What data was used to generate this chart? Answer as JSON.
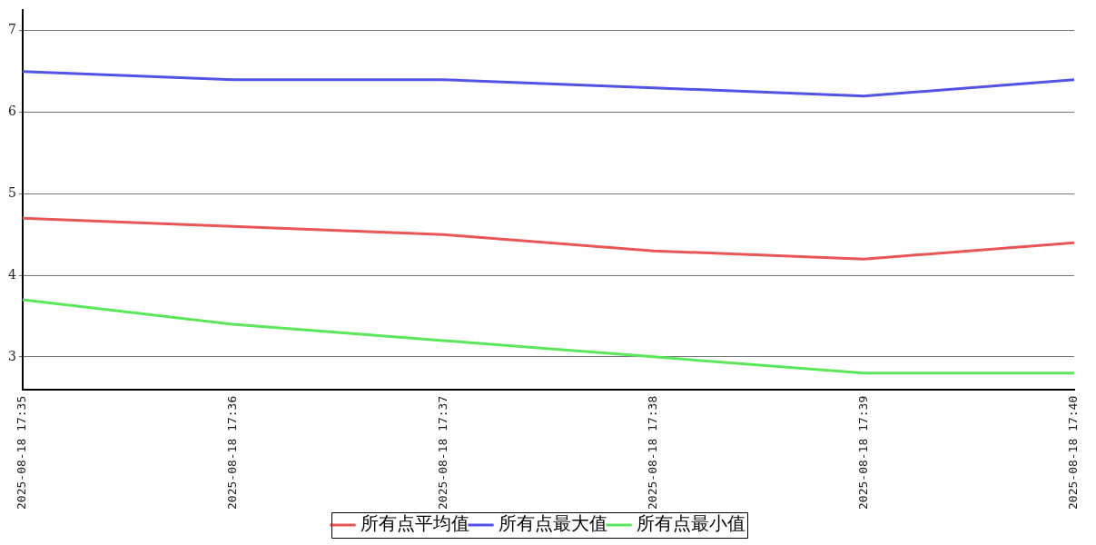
{
  "chart_data": {
    "type": "line",
    "categories": [
      "2025-08-18 17:35",
      "2025-08-18 17:36",
      "2025-08-18 17:37",
      "2025-08-18 17:38",
      "2025-08-18 17:39",
      "2025-08-18 17:40"
    ],
    "series": [
      {
        "name": "所有点平均值",
        "color": "#e85656",
        "values": [
          4.7,
          4.6,
          4.5,
          4.3,
          4.2,
          4.4
        ]
      },
      {
        "name": "所有点最大值",
        "color": "#5353e6",
        "values": [
          6.5,
          6.4,
          6.4,
          6.3,
          6.2,
          6.4
        ]
      },
      {
        "name": "所有点最小值",
        "color": "#5ae85a",
        "values": [
          3.7,
          3.4,
          3.2,
          3.0,
          2.8,
          2.8
        ]
      }
    ],
    "ylim": [
      2.6,
      7.25
    ],
    "yticks": [
      3,
      4,
      5,
      6,
      7
    ],
    "grid": "y",
    "legend": "bottom",
    "marker": "none",
    "line_style": "solid"
  }
}
